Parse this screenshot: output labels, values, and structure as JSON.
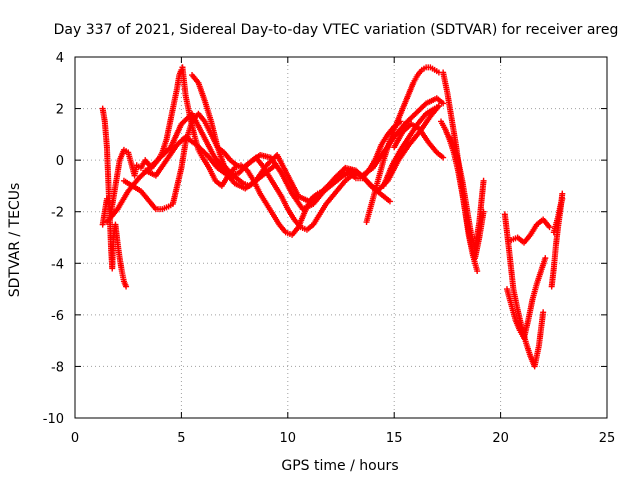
{
  "chart_data": {
    "type": "scatter",
    "title": "Day 337 of 2021, Sidereal Day-to-day VTEC variation (SDTVAR) for receiver areg",
    "xlabel": "GPS time / hours",
    "ylabel": "SDTVAR / TECUs",
    "xlim": [
      0,
      25
    ],
    "ylim": [
      -10,
      4
    ],
    "xticks": [
      0,
      5,
      10,
      15,
      20,
      25
    ],
    "yticks": [
      -10,
      -8,
      -6,
      -4,
      -2,
      0,
      2,
      4
    ],
    "grid": true,
    "marker": "+",
    "color": "#ff0000",
    "series": [
      {
        "x": [
          1.3,
          1.4,
          1.5,
          1.55,
          1.6,
          1.65,
          1.7,
          1.75,
          1.8,
          1.9,
          2.0,
          2.1,
          2.2,
          2.3,
          2.4
        ],
        "y": [
          2.0,
          1.5,
          0.5,
          -0.5,
          -1.5,
          -2.5,
          -3.5,
          -4.2,
          -3.0,
          -2.5,
          -3.2,
          -3.8,
          -4.3,
          -4.7,
          -4.9
        ]
      },
      {
        "x": [
          1.3,
          1.5,
          1.7,
          1.9,
          2.1,
          2.3,
          2.5,
          2.7,
          2.8,
          2.9,
          3.1,
          3.3,
          3.6,
          3.9,
          4.1,
          4.3,
          4.6,
          4.8,
          4.9,
          5.0,
          5.05
        ],
        "y": [
          -2.5,
          -1.5,
          -2.0,
          -1.0,
          0.0,
          0.4,
          0.3,
          -0.3,
          -0.6,
          -0.2,
          -0.3,
          0.0,
          -0.3,
          0.0,
          0.3,
          0.8,
          2.0,
          2.8,
          3.3,
          3.5,
          3.6
        ]
      },
      {
        "x": [
          5.05,
          5.2,
          5.4,
          5.6,
          5.8,
          6.0,
          6.3,
          6.6,
          6.9,
          7.2,
          7.5,
          7.8,
          8.1,
          8.4,
          8.7,
          9.0,
          9.3,
          9.6,
          9.9,
          10.2,
          10.5,
          10.8,
          11.1,
          11.4,
          11.7,
          12.0,
          12.3,
          12.6,
          12.9,
          13.2,
          13.5,
          13.8,
          14.1,
          14.4,
          14.7,
          15.0,
          15.3
        ],
        "y": [
          3.6,
          2.5,
          1.7,
          1.0,
          0.4,
          0.1,
          -0.3,
          -0.8,
          -1.0,
          -0.6,
          -0.3,
          -0.2,
          -0.4,
          -0.8,
          -1.3,
          -1.7,
          -2.1,
          -2.5,
          -2.8,
          -2.9,
          -2.6,
          -2.0,
          -1.5,
          -1.3,
          -1.2,
          -1.0,
          -0.8,
          -0.6,
          -0.5,
          -0.7,
          -0.7,
          -0.4,
          0.0,
          0.6,
          1.0,
          1.3,
          1.5
        ]
      },
      {
        "x": [
          1.5,
          2.0,
          2.5,
          3.0,
          3.5,
          4.0,
          4.5,
          5.0,
          5.5,
          6.0,
          6.5,
          7.0,
          7.5,
          8.0,
          8.5,
          9.0,
          9.5,
          10.0,
          10.5,
          11.0,
          11.5,
          12.0,
          12.5,
          13.0,
          13.5,
          14.0,
          14.5,
          15.0,
          15.5,
          16.0,
          16.5,
          17.0,
          17.3
        ],
        "y": [
          -2.4,
          -1.9,
          -1.2,
          -0.7,
          -0.3,
          0.1,
          0.5,
          1.4,
          1.8,
          1.0,
          0.2,
          -0.4,
          -0.9,
          -1.1,
          -0.8,
          -0.2,
          0.2,
          -0.6,
          -1.4,
          -1.6,
          -1.3,
          -0.9,
          -0.6,
          -0.4,
          -0.6,
          -0.3,
          0.3,
          0.9,
          1.4,
          1.8,
          2.2,
          2.4,
          2.2
        ]
      },
      {
        "x": [
          2.3,
          2.7,
          3.1,
          3.5,
          3.8,
          4.1,
          4.4,
          4.6,
          4.8,
          5.0,
          5.2,
          5.5,
          5.8,
          6.1,
          6.4,
          6.7,
          7.0,
          7.3,
          7.6,
          7.9,
          8.2,
          8.5,
          8.8,
          9.1,
          9.4,
          9.7,
          10.0,
          10.3,
          10.6,
          10.9,
          11.2,
          11.5,
          11.8,
          12.1,
          12.4,
          12.7,
          13.0,
          13.3,
          13.6,
          13.9,
          14.2,
          14.5,
          14.8
        ],
        "y": [
          -0.8,
          -1.0,
          -1.2,
          -1.6,
          -1.9,
          -1.9,
          -1.8,
          -1.7,
          -1.0,
          -0.3,
          0.7,
          1.5,
          1.8,
          1.5,
          1.0,
          0.5,
          0.3,
          0.0,
          -0.2,
          -0.3,
          -0.1,
          0.1,
          -0.2,
          -0.6,
          -1.0,
          -1.4,
          -1.9,
          -2.3,
          -2.6,
          -2.7,
          -2.5,
          -2.1,
          -1.7,
          -1.4,
          -1.1,
          -0.8,
          -0.6,
          -0.5,
          -0.7,
          -1.0,
          -1.2,
          -1.4,
          -1.6
        ]
      },
      {
        "x": [
          3.3,
          3.8,
          4.3,
          4.8,
          5.2,
          5.7,
          6.2,
          6.7,
          7.2,
          7.7,
          8.2,
          8.7,
          9.2,
          9.7,
          10.2,
          10.7,
          11.2,
          11.7,
          12.2,
          12.7,
          13.2,
          13.7,
          14.2,
          14.7,
          15.2,
          15.7,
          16.2,
          16.7,
          17.1
        ],
        "y": [
          -0.4,
          -0.6,
          0.0,
          0.6,
          0.9,
          0.6,
          0.2,
          -0.3,
          -0.6,
          -0.5,
          -0.1,
          0.2,
          0.1,
          -0.5,
          -1.3,
          -1.9,
          -1.7,
          -1.2,
          -0.7,
          -0.3,
          -0.4,
          -0.8,
          -1.2,
          -0.8,
          0.0,
          0.6,
          1.1,
          1.7,
          2.1
        ]
      },
      {
        "x": [
          5.5,
          5.8,
          6.1,
          6.4,
          6.7,
          7.0,
          7.3,
          7.6,
          7.9,
          8.2,
          8.5,
          8.8,
          9.1,
          9.4
        ],
        "y": [
          3.3,
          3.0,
          2.3,
          1.5,
          0.5,
          -0.2,
          -0.5,
          -0.7,
          -0.9,
          -1.0,
          -0.8,
          -0.6,
          -0.4,
          -0.2
        ]
      },
      {
        "x": [
          13.7,
          13.9,
          14.1,
          14.3,
          14.5,
          14.7,
          14.9,
          15.1,
          15.3,
          15.5,
          15.7,
          15.9,
          16.1,
          16.3,
          16.5,
          16.7,
          16.9,
          17.1
        ],
        "y": [
          -2.4,
          -1.8,
          -1.2,
          -0.6,
          0.0,
          0.5,
          1.0,
          1.4,
          1.8,
          2.2,
          2.6,
          3.0,
          3.3,
          3.5,
          3.6,
          3.6,
          3.5,
          3.4
        ]
      },
      {
        "x": [
          14.5,
          14.9,
          15.3,
          15.7,
          16.1,
          16.5,
          16.9,
          17.1
        ],
        "y": [
          -1.0,
          -0.2,
          0.4,
          0.9,
          1.4,
          1.8,
          2.0,
          2.1
        ]
      },
      {
        "x": [
          15.0,
          15.4,
          15.8,
          16.2,
          16.6,
          17.0,
          17.3
        ],
        "y": [
          0.5,
          1.1,
          1.4,
          1.2,
          0.7,
          0.3,
          0.1
        ]
      },
      {
        "x": [
          17.3,
          17.5,
          17.7,
          17.9,
          18.1,
          18.3,
          18.5,
          18.7,
          18.9
        ],
        "y": [
          3.4,
          2.6,
          1.6,
          0.6,
          -0.6,
          -1.8,
          -2.9,
          -3.7,
          -4.3
        ]
      },
      {
        "x": [
          17.2,
          17.4,
          17.6,
          17.8,
          18.0,
          18.2,
          18.4,
          18.6,
          18.8,
          19.0,
          19.2
        ],
        "y": [
          1.5,
          1.2,
          0.8,
          0.3,
          -0.4,
          -1.3,
          -2.3,
          -3.2,
          -3.8,
          -3.0,
          -2.0
        ]
      },
      {
        "x": [
          17.6,
          17.8,
          18.0,
          18.2,
          18.4,
          18.6,
          18.8,
          19.0,
          19.2
        ],
        "y": [
          0.9,
          0.6,
          0.0,
          -0.8,
          -1.8,
          -2.8,
          -3.4,
          -2.4,
          -0.8
        ]
      },
      {
        "x": [
          20.2,
          20.4,
          20.6,
          20.8,
          21.0,
          21.2,
          21.4,
          21.6,
          21.8,
          22.0
        ],
        "y": [
          -2.1,
          -3.5,
          -5.0,
          -5.8,
          -6.5,
          -7.1,
          -7.6,
          -8.0,
          -7.2,
          -5.9
        ]
      },
      {
        "x": [
          20.3,
          20.5,
          20.7,
          20.9,
          21.1,
          21.3,
          21.5,
          21.7,
          21.9,
          22.1
        ],
        "y": [
          -5.0,
          -5.6,
          -6.2,
          -6.6,
          -6.9,
          -6.2,
          -5.4,
          -4.8,
          -4.3,
          -3.8
        ]
      },
      {
        "x": [
          20.5,
          20.8,
          21.1,
          21.4,
          21.7,
          22.0,
          22.3
        ],
        "y": [
          -3.1,
          -3.0,
          -3.2,
          -2.9,
          -2.5,
          -2.3,
          -2.6
        ]
      },
      {
        "x": [
          22.4,
          22.5,
          22.6,
          22.7,
          22.8,
          22.9
        ],
        "y": [
          -4.9,
          -4.2,
          -3.3,
          -2.6,
          -2.0,
          -1.3
        ]
      },
      {
        "x": [
          22.5,
          22.6,
          22.7,
          22.8,
          22.9
        ],
        "y": [
          -2.8,
          -2.5,
          -2.2,
          -1.8,
          -1.5
        ]
      }
    ]
  }
}
